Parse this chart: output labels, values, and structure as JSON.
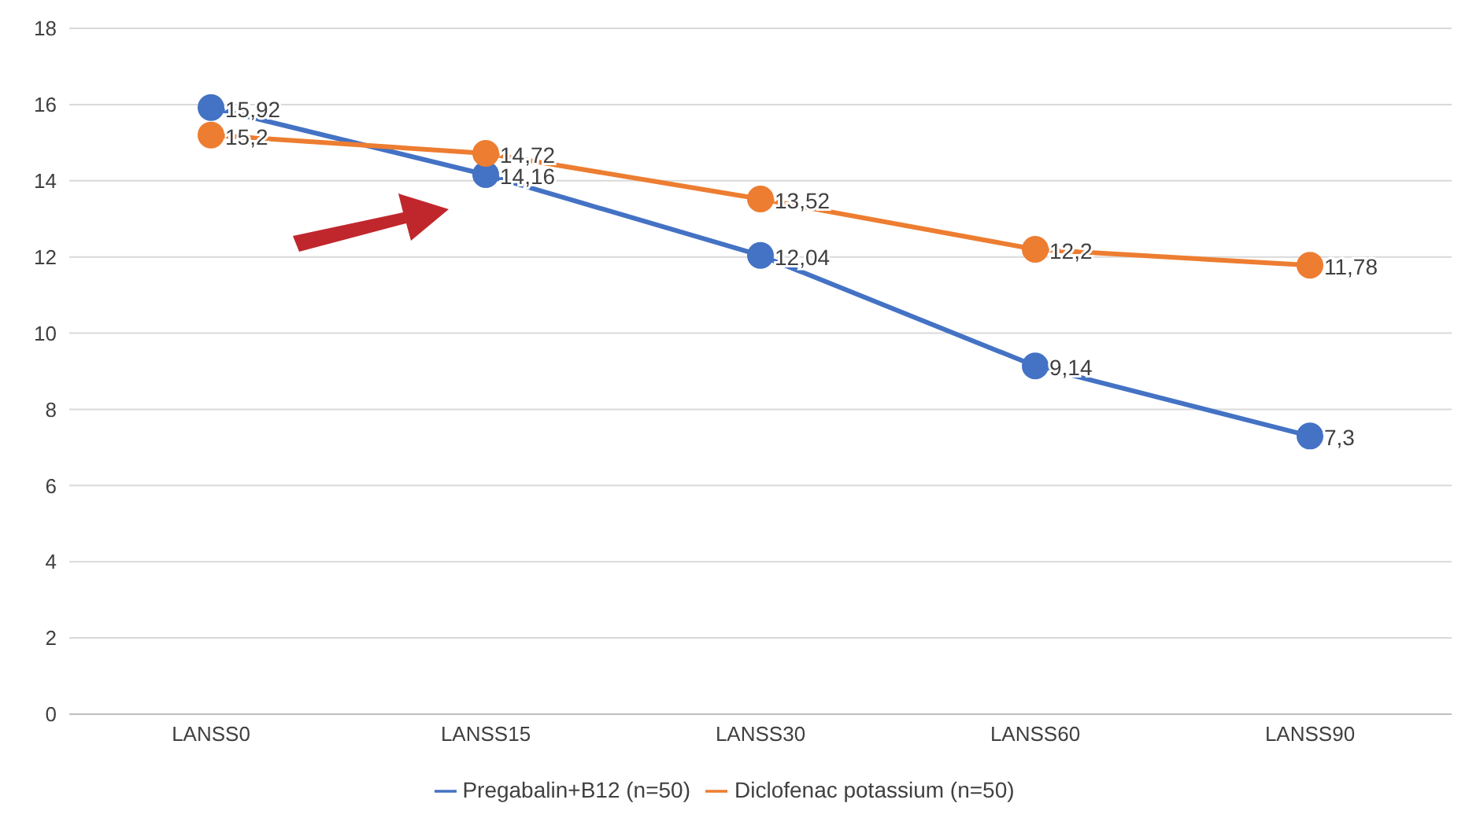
{
  "chart_data": {
    "type": "line",
    "categories": [
      "LANSS0",
      "LANSS15",
      "LANSS30",
      "LANSS60",
      "LANSS90"
    ],
    "series": [
      {
        "name": "Pregabalin+B12 (n=50)",
        "color": "#4472c4",
        "values": [
          15.92,
          14.16,
          12.04,
          9.14,
          7.3
        ],
        "value_labels": [
          "15,92",
          "14,16",
          "12,04",
          "9,14",
          "7,3"
        ]
      },
      {
        "name": "Diclofenac potassium (n=50)",
        "color": "#ed7d31",
        "values": [
          15.2,
          14.72,
          13.52,
          12.2,
          11.78
        ],
        "value_labels": [
          "15,2",
          "14,72",
          "13,52",
          "12,2",
          "11,78"
        ]
      }
    ],
    "ylim": [
      0,
      18
    ],
    "yticks": [
      0,
      2,
      4,
      6,
      8,
      10,
      12,
      14,
      16,
      18
    ],
    "grid": "y",
    "legend": "bottom",
    "marker": "circle",
    "line_style": "solid"
  }
}
